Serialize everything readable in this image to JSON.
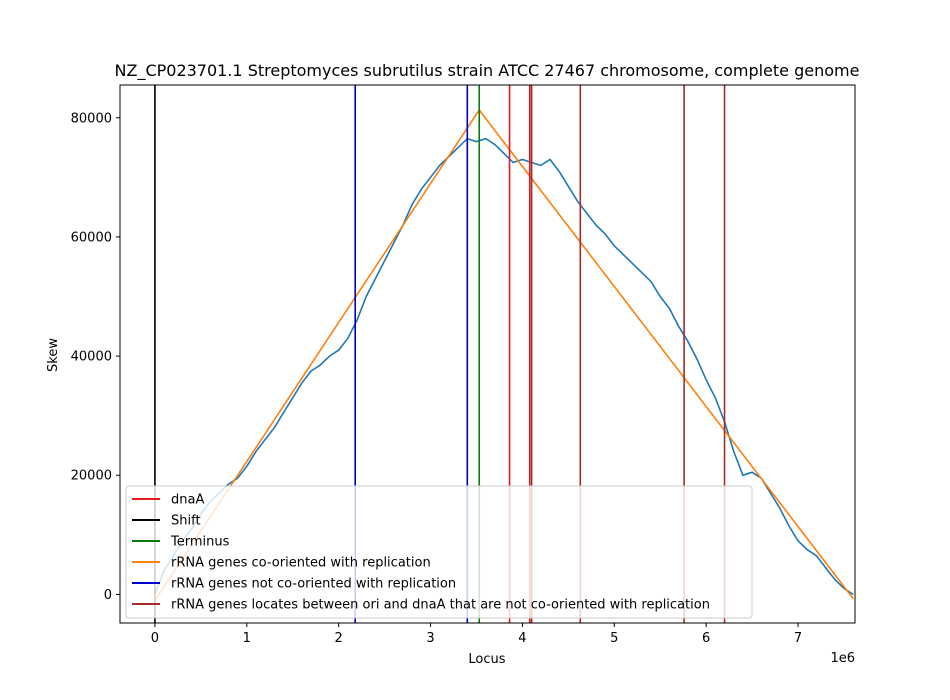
{
  "chart_data": {
    "type": "line",
    "title": "NZ_CP023701.1 Streptomyces subrutilus strain ATCC 27467 chromosome, complete genome",
    "xlabel": "Locus",
    "ylabel": "Skew",
    "x_offset_label": "1e6",
    "xlim": [
      -0.38,
      7.62
    ],
    "ylim": [
      -4800,
      85500
    ],
    "x_ticks": [
      0,
      1,
      2,
      3,
      4,
      5,
      6,
      7
    ],
    "x_tick_labels": [
      "0",
      "1",
      "2",
      "3",
      "4",
      "5",
      "6",
      "7"
    ],
    "y_ticks": [
      0,
      20000,
      40000,
      60000,
      80000
    ],
    "y_tick_labels": [
      "0",
      "20000",
      "40000",
      "60000",
      "80000"
    ],
    "grid": false,
    "legend_position": "lower-left",
    "series": [
      {
        "name": "skew",
        "color": "#1f77b4",
        "x": [
          0,
          0.05,
          0.1,
          0.2,
          0.3,
          0.4,
          0.5,
          0.6,
          0.7,
          0.8,
          0.9,
          1.0,
          1.1,
          1.2,
          1.3,
          1.4,
          1.5,
          1.6,
          1.7,
          1.8,
          1.9,
          2.0,
          2.1,
          2.2,
          2.3,
          2.4,
          2.5,
          2.6,
          2.7,
          2.8,
          2.9,
          3.0,
          3.1,
          3.2,
          3.3,
          3.4,
          3.5,
          3.6,
          3.7,
          3.8,
          3.9,
          4.0,
          4.1,
          4.2,
          4.3,
          4.4,
          4.5,
          4.6,
          4.7,
          4.8,
          4.9,
          5.0,
          5.1,
          5.2,
          5.3,
          5.4,
          5.5,
          5.6,
          5.7,
          5.8,
          5.9,
          6.0,
          6.1,
          6.2,
          6.3,
          6.4,
          6.5,
          6.6,
          6.7,
          6.8,
          6.9,
          7.0,
          7.1,
          7.2,
          7.3,
          7.4,
          7.5,
          7.6
        ],
        "values": [
          0,
          2000,
          4000,
          6500,
          9000,
          11000,
          13500,
          15500,
          17000,
          18500,
          19500,
          21500,
          24000,
          26000,
          28000,
          30500,
          33000,
          35500,
          37500,
          38500,
          40000,
          41000,
          43000,
          46000,
          50000,
          53000,
          56000,
          59000,
          62000,
          65500,
          68000,
          70000,
          72000,
          73500,
          75000,
          76500,
          76000,
          76500,
          75500,
          74000,
          72500,
          73000,
          72500,
          72000,
          73000,
          71000,
          68500,
          66000,
          64000,
          62000,
          60500,
          58500,
          57000,
          55500,
          54000,
          52500,
          50000,
          48000,
          45000,
          42500,
          39500,
          36000,
          33000,
          29000,
          24000,
          20000,
          20500,
          19500,
          17000,
          14500,
          11500,
          9000,
          7500,
          6500,
          4500,
          2500,
          1000,
          0
        ]
      },
      {
        "name": "rRNA genes co-oriented with replication",
        "color": "#ff7f0e",
        "x": [
          0,
          3.53,
          7.6
        ],
        "values": [
          -1000,
          81300,
          -700
        ]
      }
    ],
    "vlines": [
      {
        "name": "dnaA",
        "color": "#e41a1c",
        "x": [
          3.86,
          4.08
        ]
      },
      {
        "name": "Shift",
        "color": "#000000",
        "x": [
          0.0
        ]
      },
      {
        "name": "Terminus",
        "color": "#0b7a0b",
        "x": [
          3.53
        ]
      },
      {
        "name": "rRNA genes not co-oriented with replication",
        "color": "#0000cc",
        "x": [
          2.18,
          3.4
        ]
      },
      {
        "name": "rRNA genes locates between ori and dnaA that are not co-oriented with replication",
        "color": "#a52a2a",
        "x": [
          4.1,
          4.63,
          5.76,
          6.2
        ]
      }
    ],
    "legend": [
      {
        "label": "dnaA",
        "color": "#e41a1c"
      },
      {
        "label": "Shift",
        "color": "#000000"
      },
      {
        "label": "Terminus",
        "color": "#0b7a0b"
      },
      {
        "label": "rRNA genes co-oriented with replication",
        "color": "#ff7f0e"
      },
      {
        "label": "rRNA genes not co-oriented with replication",
        "color": "#0000cc"
      },
      {
        "label": "rRNA genes locates between ori and dnaA that are not co-oriented with replication",
        "color": "#a52a2a"
      }
    ]
  }
}
